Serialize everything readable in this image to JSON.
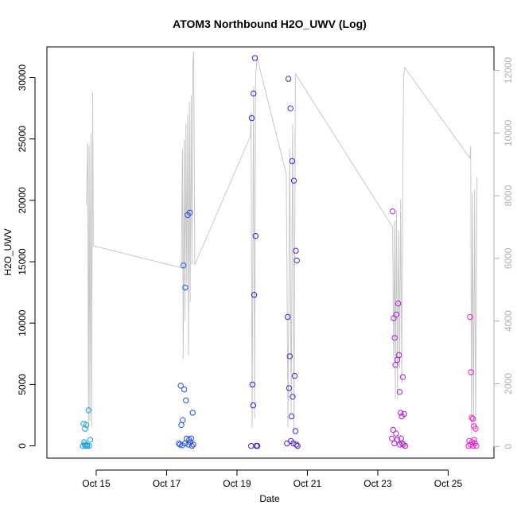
{
  "chart_data": {
    "type": "scatter",
    "title": "ATOM3 Northbound H2O_UWV (Log)",
    "xlabel": "Date",
    "ylabel": "H2O_UWV",
    "x_range_days": [
      13.6,
      26.3
    ],
    "ylim": [
      -1000,
      32500
    ],
    "ylim_right": [
      -375,
      12750
    ],
    "x_ticks": [
      {
        "label": "Oct 15",
        "day": 15
      },
      {
        "label": "Oct 17",
        "day": 17
      },
      {
        "label": "Oct 19",
        "day": 19
      },
      {
        "label": "Oct 21",
        "day": 21
      },
      {
        "label": "Oct 23",
        "day": 23
      },
      {
        "label": "Oct 25",
        "day": 25
      }
    ],
    "y_ticks": [
      {
        "label": "0",
        "value": 0
      },
      {
        "label": "5000",
        "value": 5000
      },
      {
        "label": "10000",
        "value": 10000
      },
      {
        "label": "15000",
        "value": 15000
      },
      {
        "label": "20000",
        "value": 20000
      },
      {
        "label": "25000",
        "value": 25000
      },
      {
        "label": "30000",
        "value": 30000
      }
    ],
    "y_ticks_right": [
      {
        "label": "0",
        "value": 0
      },
      {
        "label": "2000",
        "value": 2000
      },
      {
        "label": "4000",
        "value": 4000
      },
      {
        "label": "6000",
        "value": 6000
      },
      {
        "label": "8000",
        "value": 8000
      },
      {
        "label": "10000",
        "value": 10000
      },
      {
        "label": "12000",
        "value": 12000
      }
    ],
    "colors": {
      "line": "#c8c8c8",
      "start": "#1aa3e8",
      "mid": "#2a1ee8",
      "end": "#ee22cc"
    },
    "log_line": [
      [
        14.72,
        7700
      ],
      [
        14.76,
        9700
      ],
      [
        14.78,
        500
      ],
      [
        14.8,
        9600
      ],
      [
        14.82,
        800
      ],
      [
        14.85,
        10000
      ],
      [
        14.87,
        600
      ],
      [
        14.9,
        11300
      ],
      [
        14.92,
        6400
      ],
      [
        17.42,
        5700
      ],
      [
        17.45,
        9500
      ],
      [
        17.47,
        2800
      ],
      [
        17.5,
        9800
      ],
      [
        17.52,
        4000
      ],
      [
        17.55,
        10300
      ],
      [
        17.57,
        5200
      ],
      [
        17.6,
        10600
      ],
      [
        17.62,
        2900
      ],
      [
        17.65,
        11000
      ],
      [
        17.67,
        4600
      ],
      [
        17.7,
        11200
      ],
      [
        17.72,
        5800
      ],
      [
        17.75,
        12300
      ],
      [
        17.77,
        12600
      ],
      [
        17.8,
        5800
      ],
      [
        19.38,
        9900
      ],
      [
        19.4,
        10700
      ],
      [
        19.43,
        600
      ],
      [
        19.47,
        11500
      ],
      [
        19.5,
        900
      ],
      [
        19.53,
        11800
      ],
      [
        19.57,
        12400
      ],
      [
        20.4,
        8700
      ],
      [
        20.45,
        600
      ],
      [
        20.5,
        9500
      ],
      [
        20.54,
        1000
      ],
      [
        20.58,
        10300
      ],
      [
        20.62,
        500
      ],
      [
        20.66,
        11900
      ],
      [
        23.42,
        7000
      ],
      [
        23.45,
        2800
      ],
      [
        23.48,
        7200
      ],
      [
        23.5,
        1500
      ],
      [
        23.53,
        7500
      ],
      [
        23.56,
        1500
      ],
      [
        23.59,
        6900
      ],
      [
        23.62,
        2500
      ],
      [
        23.65,
        7900
      ],
      [
        23.68,
        2000
      ],
      [
        23.71,
        8200
      ],
      [
        23.73,
        11700
      ],
      [
        23.76,
        12100
      ],
      [
        25.62,
        9200
      ],
      [
        25.64,
        9600
      ],
      [
        25.66,
        400
      ],
      [
        25.69,
        8100
      ],
      [
        25.72,
        600
      ],
      [
        25.75,
        8200
      ],
      [
        25.78,
        500
      ],
      [
        25.82,
        8600
      ]
    ],
    "points": [
      {
        "x": 14.62,
        "y": 0
      },
      {
        "x": 14.64,
        "y": 1800
      },
      {
        "x": 14.66,
        "y": 300
      },
      {
        "x": 14.67,
        "y": 100
      },
      {
        "x": 14.68,
        "y": 1400
      },
      {
        "x": 14.7,
        "y": 0
      },
      {
        "x": 14.72,
        "y": 1700
      },
      {
        "x": 14.73,
        "y": 50
      },
      {
        "x": 14.75,
        "y": 0
      },
      {
        "x": 14.78,
        "y": 2900
      },
      {
        "x": 14.8,
        "y": 0
      },
      {
        "x": 14.83,
        "y": 500
      },
      {
        "x": 17.35,
        "y": 200
      },
      {
        "x": 17.38,
        "y": 100
      },
      {
        "x": 17.4,
        "y": 4900
      },
      {
        "x": 17.42,
        "y": 1700
      },
      {
        "x": 17.44,
        "y": 50
      },
      {
        "x": 17.46,
        "y": 2100
      },
      {
        "x": 17.48,
        "y": 14700
      },
      {
        "x": 17.5,
        "y": 4600
      },
      {
        "x": 17.52,
        "y": 200
      },
      {
        "x": 17.53,
        "y": 12900
      },
      {
        "x": 17.55,
        "y": 3700
      },
      {
        "x": 17.57,
        "y": 600
      },
      {
        "x": 17.6,
        "y": 18800
      },
      {
        "x": 17.62,
        "y": 100
      },
      {
        "x": 17.64,
        "y": 500
      },
      {
        "x": 17.66,
        "y": 19000
      },
      {
        "x": 17.68,
        "y": 300
      },
      {
        "x": 17.7,
        "y": 600
      },
      {
        "x": 17.72,
        "y": 0
      },
      {
        "x": 17.74,
        "y": 2700
      },
      {
        "x": 17.76,
        "y": 100
      },
      {
        "x": 19.4,
        "y": 0
      },
      {
        "x": 19.42,
        "y": 26700
      },
      {
        "x": 19.44,
        "y": 5000
      },
      {
        "x": 19.46,
        "y": 3300
      },
      {
        "x": 19.47,
        "y": 28700
      },
      {
        "x": 19.49,
        "y": 12300
      },
      {
        "x": 19.51,
        "y": 31600
      },
      {
        "x": 19.53,
        "y": 17100
      },
      {
        "x": 19.55,
        "y": 0
      },
      {
        "x": 19.58,
        "y": 0
      },
      {
        "x": 20.42,
        "y": 200
      },
      {
        "x": 20.44,
        "y": 10500
      },
      {
        "x": 20.46,
        "y": 29900
      },
      {
        "x": 20.48,
        "y": 4700
      },
      {
        "x": 20.5,
        "y": 7300
      },
      {
        "x": 20.52,
        "y": 27500
      },
      {
        "x": 20.53,
        "y": 400
      },
      {
        "x": 20.55,
        "y": 2400
      },
      {
        "x": 20.57,
        "y": 23200
      },
      {
        "x": 20.58,
        "y": 4000
      },
      {
        "x": 20.6,
        "y": 200
      },
      {
        "x": 20.62,
        "y": 21600
      },
      {
        "x": 20.64,
        "y": 5700
      },
      {
        "x": 20.66,
        "y": 1200
      },
      {
        "x": 20.67,
        "y": 15900
      },
      {
        "x": 20.69,
        "y": 100
      },
      {
        "x": 20.7,
        "y": 15100
      },
      {
        "x": 20.72,
        "y": 0
      },
      {
        "x": 23.4,
        "y": 600
      },
      {
        "x": 23.42,
        "y": 19100
      },
      {
        "x": 23.44,
        "y": 1300
      },
      {
        "x": 23.45,
        "y": 10400
      },
      {
        "x": 23.47,
        "y": 200
      },
      {
        "x": 23.48,
        "y": 8800
      },
      {
        "x": 23.5,
        "y": 6600
      },
      {
        "x": 23.52,
        "y": 1000
      },
      {
        "x": 23.53,
        "y": 10700
      },
      {
        "x": 23.55,
        "y": 7000
      },
      {
        "x": 23.56,
        "y": 500
      },
      {
        "x": 23.58,
        "y": 11600
      },
      {
        "x": 23.6,
        "y": 7400
      },
      {
        "x": 23.62,
        "y": 4400
      },
      {
        "x": 23.63,
        "y": 100
      },
      {
        "x": 23.65,
        "y": 2700
      },
      {
        "x": 23.66,
        "y": 600
      },
      {
        "x": 23.68,
        "y": 2400
      },
      {
        "x": 23.7,
        "y": 200
      },
      {
        "x": 23.71,
        "y": 5600
      },
      {
        "x": 23.73,
        "y": 100
      },
      {
        "x": 23.75,
        "y": 2600
      },
      {
        "x": 23.78,
        "y": 0
      },
      {
        "x": 25.58,
        "y": 0
      },
      {
        "x": 25.6,
        "y": 400
      },
      {
        "x": 25.62,
        "y": 10500
      },
      {
        "x": 25.64,
        "y": 100
      },
      {
        "x": 25.65,
        "y": 6000
      },
      {
        "x": 25.67,
        "y": 2300
      },
      {
        "x": 25.68,
        "y": 300
      },
      {
        "x": 25.7,
        "y": 2200
      },
      {
        "x": 25.71,
        "y": 0
      },
      {
        "x": 25.73,
        "y": 1600
      },
      {
        "x": 25.74,
        "y": 500
      },
      {
        "x": 25.76,
        "y": 200
      },
      {
        "x": 25.78,
        "y": 1400
      },
      {
        "x": 25.8,
        "y": 0
      }
    ]
  }
}
